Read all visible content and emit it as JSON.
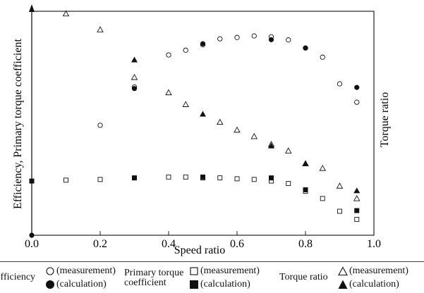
{
  "chart_data": {
    "type": "scatter",
    "xlabel": "Speed ratio",
    "ylabel_left": "Efficiency, Primary torque coefficient",
    "ylabel_right": "Torque ratio",
    "xlim": [
      0.0,
      1.0
    ],
    "x_ticks": [
      "0.0",
      "0.2",
      "0.4",
      "0.6",
      "0.8",
      "1.0"
    ],
    "y_ticks_shown": false,
    "ylim": [
      0,
      1
    ],
    "series": [
      {
        "name": "Efficiency (measurement)",
        "marker": "open-circle",
        "points": [
          [
            0.2,
            0.491
          ],
          [
            0.3,
            0.662
          ],
          [
            0.4,
            0.805
          ],
          [
            0.45,
            0.826
          ],
          [
            0.5,
            0.851
          ],
          [
            0.55,
            0.877
          ],
          [
            0.6,
            0.883
          ],
          [
            0.65,
            0.89
          ],
          [
            0.7,
            0.886
          ],
          [
            0.75,
            0.872
          ],
          [
            0.8,
            0.836
          ],
          [
            0.85,
            0.795
          ],
          [
            0.9,
            0.676
          ],
          [
            0.95,
            0.594
          ]
        ]
      },
      {
        "name": "Efficiency (calculation)",
        "marker": "filled-circle",
        "points": [
          [
            0.0,
            0.0
          ],
          [
            0.3,
            0.655
          ],
          [
            0.5,
            0.855
          ],
          [
            0.7,
            0.873
          ],
          [
            0.8,
            0.836
          ],
          [
            0.95,
            0.66
          ]
        ]
      },
      {
        "name": "Primary torque coefficient (measurement)",
        "marker": "open-square",
        "points": [
          [
            0.1,
            0.246
          ],
          [
            0.2,
            0.249
          ],
          [
            0.3,
            0.256
          ],
          [
            0.4,
            0.26
          ],
          [
            0.45,
            0.26
          ],
          [
            0.5,
            0.256
          ],
          [
            0.55,
            0.256
          ],
          [
            0.6,
            0.252
          ],
          [
            0.65,
            0.249
          ],
          [
            0.7,
            0.242
          ],
          [
            0.75,
            0.231
          ],
          [
            0.8,
            0.196
          ],
          [
            0.85,
            0.164
          ],
          [
            0.9,
            0.107
          ],
          [
            0.95,
            0.071
          ]
        ]
      },
      {
        "name": "Primary torque coefficient (calculation)",
        "marker": "filled-square",
        "points": [
          [
            0.0,
            0.242
          ],
          [
            0.3,
            0.256
          ],
          [
            0.5,
            0.26
          ],
          [
            0.7,
            0.256
          ],
          [
            0.8,
            0.203
          ],
          [
            0.95,
            0.11
          ]
        ]
      },
      {
        "name": "Torque ratio (measurement)",
        "marker": "open-triangle",
        "points": [
          [
            0.1,
            0.989
          ],
          [
            0.2,
            0.918
          ],
          [
            0.3,
            0.705
          ],
          [
            0.4,
            0.637
          ],
          [
            0.45,
            0.584
          ],
          [
            0.55,
            0.505
          ],
          [
            0.6,
            0.47
          ],
          [
            0.65,
            0.441
          ],
          [
            0.7,
            0.406
          ],
          [
            0.75,
            0.377
          ],
          [
            0.8,
            0.32
          ],
          [
            0.85,
            0.299
          ],
          [
            0.9,
            0.22
          ],
          [
            0.95,
            0.164
          ]
        ]
      },
      {
        "name": "Torque ratio (calculation)",
        "marker": "filled-triangle",
        "points": [
          [
            0.3,
            0.783
          ],
          [
            0.5,
            0.541
          ],
          [
            0.7,
            0.399
          ],
          [
            0.8,
            0.32
          ],
          [
            0.95,
            0.199
          ]
        ]
      }
    ],
    "legend": {
      "placement": "bottom",
      "groups": [
        {
          "label": "Efficiency",
          "measurement": "(measurement)",
          "calculation": "(calculation)"
        },
        {
          "label": "Primary torque coefficient",
          "measurement": "(measurement)",
          "calculation": "(calculation)"
        },
        {
          "label": "Torque ratio",
          "measurement": "(measurement)",
          "calculation": "(calculation)"
        }
      ]
    }
  }
}
